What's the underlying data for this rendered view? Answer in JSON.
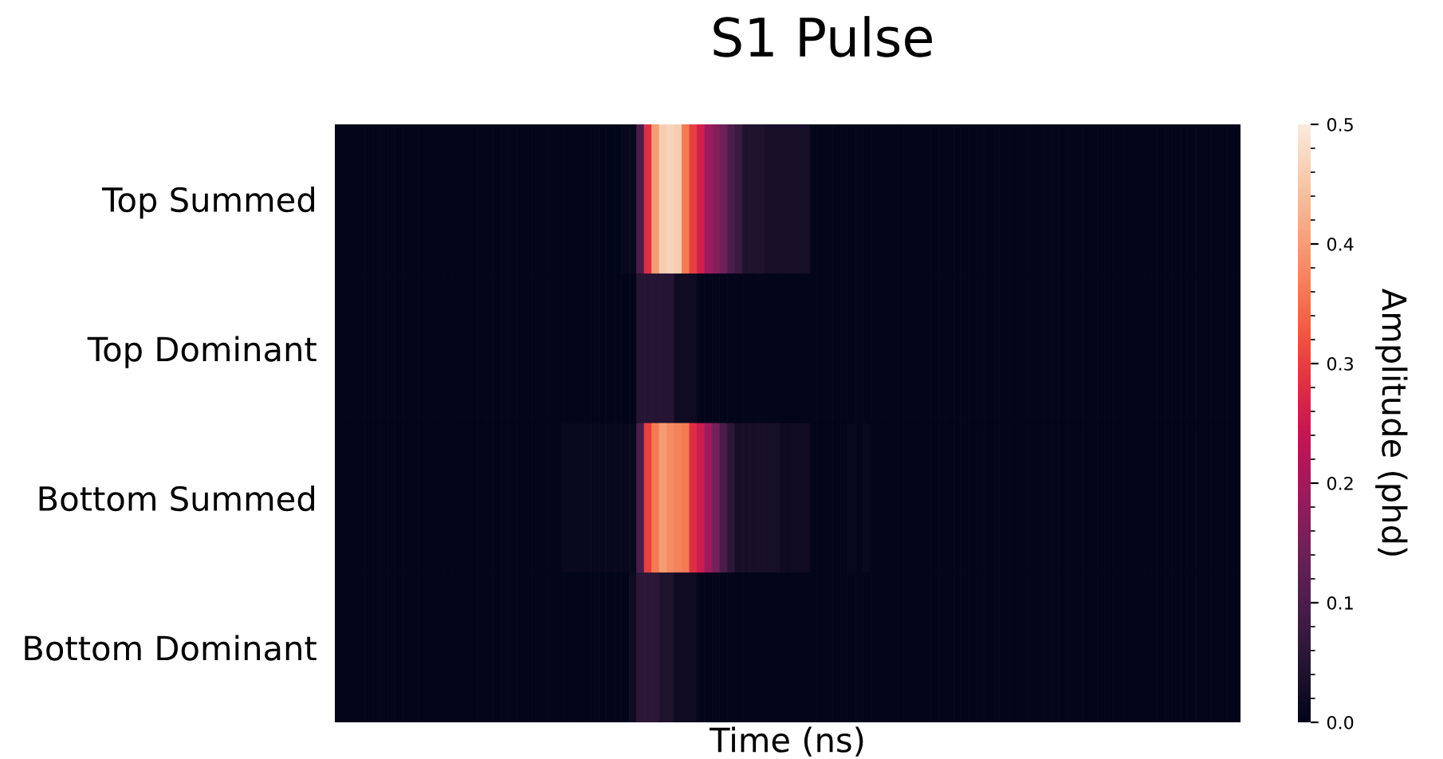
{
  "chart_data": {
    "type": "heatmap",
    "title": "S1 Pulse",
    "xlabel": "Time (ns)",
    "clabel": "Amplitude (phd)",
    "categories": [
      null,
      null,
      null,
      null,
      null,
      null,
      null,
      null,
      null,
      null,
      null,
      null,
      null,
      null,
      null,
      null,
      null,
      null,
      null,
      null,
      null,
      null,
      null,
      null,
      null,
      null,
      null,
      null,
      null,
      null,
      null,
      null,
      null,
      null,
      null,
      null,
      null,
      null,
      null,
      null,
      null,
      null,
      null,
      null,
      null,
      null,
      null,
      null,
      null,
      null,
      null,
      null,
      null,
      null,
      null,
      null,
      null,
      null,
      null,
      null,
      null,
      null,
      null,
      null,
      null,
      null,
      null,
      null,
      null,
      null,
      null,
      null,
      null,
      null,
      null,
      null,
      null,
      null,
      null,
      null,
      null,
      null,
      null,
      null,
      null,
      null,
      null,
      null,
      null,
      null,
      null,
      null,
      null,
      null,
      null,
      null,
      null,
      null,
      null,
      null,
      null,
      null,
      null,
      null,
      null,
      null,
      null,
      null,
      null,
      null,
      null,
      null,
      null,
      null,
      null,
      null,
      null,
      null,
      null,
      null
    ],
    "y_categories": [
      "Top Summed",
      "Top Dominant",
      "Bottom Summed",
      "Bottom Dominant"
    ],
    "cells": [
      [
        0,
        0,
        0,
        0,
        0,
        0,
        0,
        0,
        0,
        0,
        0,
        0,
        0,
        0,
        0,
        0,
        0,
        0,
        0,
        0,
        0,
        0,
        0,
        0,
        0,
        0,
        0,
        0,
        0,
        0,
        0,
        0,
        0,
        0,
        0,
        0,
        0,
        0,
        0.01,
        0.01,
        0.1,
        0.28,
        0.4,
        0.46,
        0.47,
        0.46,
        0.36,
        0.3,
        0.26,
        0.2,
        0.17,
        0.14,
        0.1,
        0.08,
        0.04,
        0.04,
        0.04,
        0.03,
        0.03,
        0.03,
        0.03,
        0.03,
        0.03,
        0,
        0,
        0,
        0,
        0,
        0,
        0,
        0,
        0,
        0,
        0,
        0,
        0,
        0,
        0,
        0,
        0,
        0,
        0,
        0,
        0,
        0,
        0,
        0,
        0,
        0,
        0,
        0,
        0,
        0,
        0,
        0,
        0,
        0,
        0,
        0,
        0,
        0,
        0,
        0,
        0,
        0,
        0,
        0,
        0,
        0,
        0,
        0,
        0,
        0,
        0,
        0,
        0,
        0,
        0,
        0,
        0
      ],
      [
        0,
        0,
        0,
        0,
        0,
        0,
        0,
        0,
        0,
        0,
        0,
        0,
        0,
        0,
        0,
        0,
        0,
        0,
        0,
        0,
        0,
        0,
        0,
        0,
        0,
        0,
        0,
        0,
        0,
        0,
        0,
        0,
        0,
        0,
        0,
        0,
        0,
        0,
        0,
        0,
        0.05,
        0.05,
        0.05,
        0.05,
        0.05,
        0.02,
        0.02,
        0.02,
        0,
        0,
        0,
        0,
        0,
        0,
        0,
        0,
        0,
        0,
        0,
        0,
        0,
        0,
        0,
        0,
        0,
        0,
        0,
        0,
        0,
        0,
        0,
        0,
        0,
        0,
        0,
        0,
        0,
        0,
        0,
        0,
        0,
        0,
        0,
        0,
        0,
        0,
        0,
        0,
        0,
        0,
        0,
        0,
        0,
        0,
        0,
        0,
        0,
        0,
        0,
        0,
        0,
        0,
        0,
        0,
        0,
        0,
        0,
        0,
        0,
        0,
        0,
        0,
        0,
        0,
        0,
        0,
        0,
        0,
        0,
        0
      ],
      [
        0,
        0,
        0,
        0,
        0,
        0,
        0,
        0,
        0,
        0,
        0,
        0,
        0,
        0,
        0,
        0,
        0,
        0,
        0,
        0,
        0,
        0,
        0,
        0,
        0,
        0,
        0,
        0,
        0,
        0,
        0.01,
        0.01,
        0.01,
        0.01,
        0.01,
        0.01,
        0.01,
        0.01,
        0.01,
        0.01,
        0.1,
        0.3,
        0.36,
        0.4,
        0.38,
        0.37,
        0.36,
        0.28,
        0.25,
        0.2,
        0.15,
        0.1,
        0.06,
        0.03,
        0.03,
        0.03,
        0.03,
        0.03,
        0.03,
        0.02,
        0.02,
        0.02,
        0.02,
        0,
        0,
        0,
        0,
        0,
        0.01,
        0,
        0.01,
        0,
        0,
        0,
        0,
        0,
        0,
        0,
        0,
        0,
        0,
        0,
        0,
        0,
        0,
        0,
        0,
        0,
        0,
        0,
        0,
        0,
        0,
        0,
        0,
        0,
        0,
        0,
        0,
        0,
        0,
        0,
        0,
        0,
        0,
        0,
        0,
        0,
        0,
        0,
        0,
        0,
        0,
        0,
        0,
        0,
        0,
        0,
        0,
        0
      ],
      [
        0,
        0,
        0,
        0,
        0,
        0,
        0,
        0,
        0,
        0,
        0,
        0,
        0,
        0,
        0,
        0,
        0,
        0,
        0,
        0,
        0,
        0,
        0,
        0,
        0,
        0,
        0,
        0,
        0,
        0,
        0,
        0,
        0,
        0,
        0,
        0,
        0,
        0,
        0,
        0.02,
        0.06,
        0.06,
        0.06,
        0.04,
        0.04,
        0.02,
        0.02,
        0.02,
        0,
        0,
        0,
        0,
        0,
        0,
        0,
        0,
        0,
        0,
        0,
        0,
        0,
        0,
        0,
        0,
        0,
        0,
        0,
        0,
        0,
        0,
        0,
        0,
        0,
        0,
        0,
        0,
        0,
        0,
        0,
        0,
        0,
        0,
        0,
        0,
        0,
        0,
        0,
        0,
        0,
        0,
        0,
        0,
        0,
        0,
        0,
        0,
        0,
        0,
        0,
        0,
        0,
        0,
        0,
        0,
        0,
        0,
        0,
        0,
        0,
        0,
        0,
        0,
        0,
        0,
        0,
        0,
        0,
        0,
        0,
        0
      ]
    ],
    "clim": [
      0,
      0.5
    ],
    "cticks": [
      {
        "value": 0,
        "label": "0.0"
      },
      0.1,
      0.2,
      0.3,
      0.4,
      0.5
    ]
  }
}
